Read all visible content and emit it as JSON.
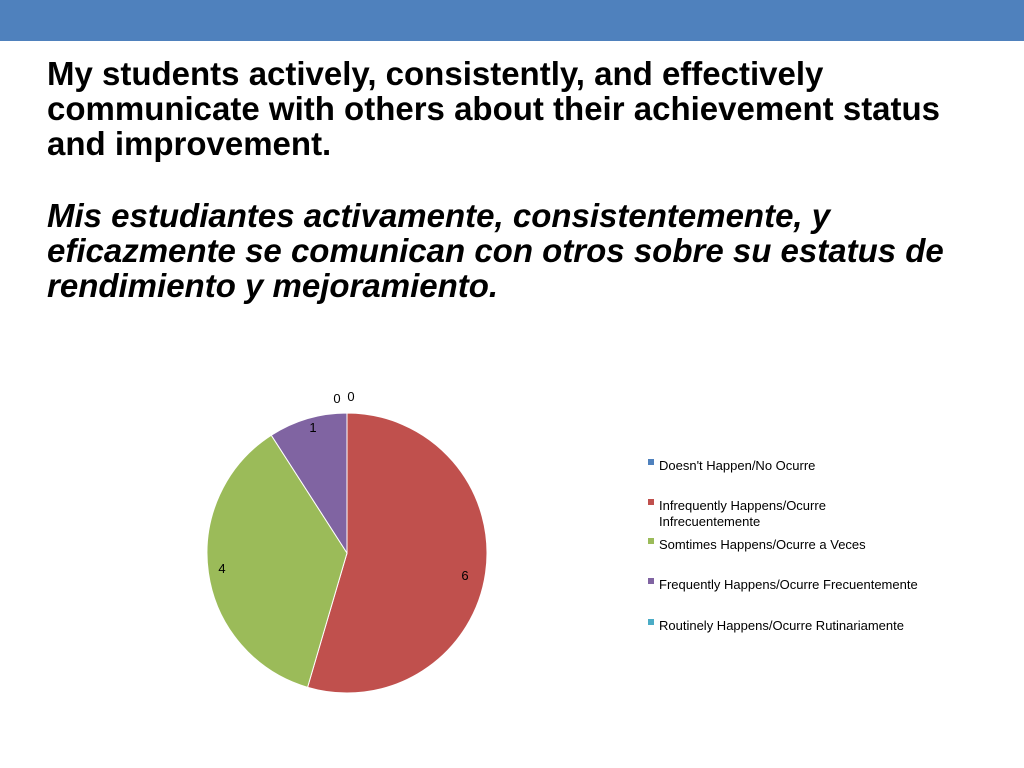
{
  "slide": {
    "title_en": "My students actively, consistently, and effectively communicate with others about their achievement status and improvement.",
    "title_es": "Mis estudiantes activamente, consistentemente, y eficazmente se comunican con otros sobre su estatus de rendimiento y mejoramiento.",
    "accent_color": "#4f81bd"
  },
  "chart_data": {
    "type": "pie",
    "categories": [
      "Doesn't Happen/No Ocurre",
      "Infrequently Happens/Ocurre Infrecuentemente",
      "Somtimes Happens/Ocurre a Veces",
      "Frequently Happens/Ocurre Frecuentemente",
      "Routinely Happens/Ocurre Rutinariamente"
    ],
    "values": [
      0,
      6,
      4,
      1,
      0
    ],
    "colors": [
      "#4f81bd",
      "#c0504d",
      "#9bbb59",
      "#8064a2",
      "#4bacc6"
    ],
    "data_labels": [
      "0",
      "6",
      "4",
      "1",
      "0"
    ],
    "legend_placement": "right",
    "start": "top",
    "direction": "clockwise"
  }
}
